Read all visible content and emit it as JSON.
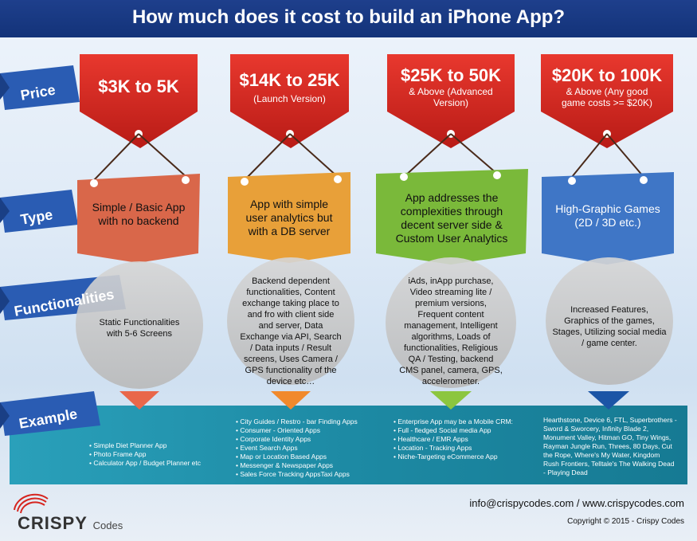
{
  "header": {
    "title": "How much does it cost to build an iPhone App?"
  },
  "row_labels": {
    "price": "Price",
    "type": "Type",
    "functionalities": "Functionalities",
    "example": "Example"
  },
  "columns": [
    {
      "price_main": "$3K to 5K",
      "price_sub": "",
      "type": "Simple / Basic App with no backend",
      "type_color": "#d9674a",
      "functionalities": "Static Functionalities with 5-6 Screens",
      "example_items": [
        "Simple Diet Planner App",
        "Photo Frame App",
        "Calculator App / Budget Planner etc"
      ]
    },
    {
      "price_main": "$14K to 25K",
      "price_sub": "(Launch Version)",
      "type": "App with simple user analytics but with a DB server",
      "type_color": "#e8a039",
      "functionalities": "Backend dependent functionalities, Content exchange taking place to and fro with client side and server, Data Exchange via API, Search / Data inputs / Result screens, Uses Camera / GPS functionality of the device etc…",
      "example_items": [
        "City Guides / Restro - bar Finding Apps",
        "Consumer - Oriented Apps",
        "Corporate Identity Apps",
        "Event Search Apps",
        "Map or Location Based Apps",
        "Messenger & Newspaper Apps",
        "Sales Force Tracking AppsTaxi Apps"
      ]
    },
    {
      "price_main": "$25K to 50K",
      "price_sub": "& Above (Advanced Version)",
      "type": "App addresses the complexities through decent server side & Custom User Analytics",
      "type_color": "#7ab93a",
      "functionalities": "iAds, inApp purchase, Video streaming lite / premium versions, Frequent content management, Intelligent algorithms, Loads of functionalities, Religious QA / Testing, backend CMS panel, camera, GPS, accelerometer.",
      "example_items": [
        "Enterprise App may be a Mobile CRM:",
        "Full - fledged Social media App",
        "Healthcare / EMR Apps",
        "Location - Tracking Apps",
        "Niche-Targeting eCommerce App"
      ]
    },
    {
      "price_main": "$20K to 100K",
      "price_sub": "& Above (Any good game costs >= $20K)",
      "type": "High-Graphic Games (2D / 3D etc.)",
      "type_color": "#3f76c6",
      "functionalities": "Increased Features, Graphics of the games, Stages, Utilizing social media / game center.",
      "example_text": "Hearthstone, Device 6, FTL, Superbrothers - Sword & Sworcery, Infinity Blade 2, Monument Valley, Hitman GO, Tiny Wings, Rayman Jungle Run, Threes, 80 Days, Cut the Rope, Where's My Water, Kingdom Rush Frontiers, Telltale's The Walking Dead - Playing Dead"
    }
  ],
  "footer": {
    "contact": "info@crispycodes.com / www.crispycodes.com",
    "copyright": "Copyright © 2015 - Crispy Codes",
    "logo_main": "CRISPY",
    "logo_sub": "Codes"
  },
  "colors": {
    "header": "#1b3c88",
    "tag_red": "#d6251f",
    "ribbon": "#2a5cb3",
    "example_band": "#1d8aa4",
    "circle": "#c8c8c8"
  }
}
